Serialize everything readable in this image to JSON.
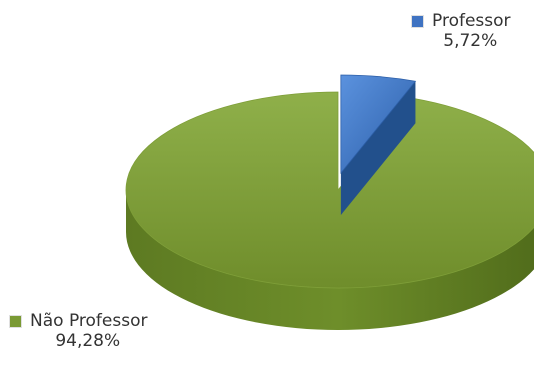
{
  "chart_data": {
    "type": "pie",
    "title": "",
    "series": [
      {
        "name": "",
        "slices": [
          {
            "label": "Professor",
            "value": 5.72,
            "display": "5,72%",
            "color": "#3f73c2",
            "exploded": true
          },
          {
            "label": "Não Professor",
            "value": 94.28,
            "display": "94,28%",
            "color": "#7a9a34",
            "exploded": false
          }
        ]
      }
    ],
    "legend_placement": "callouts"
  },
  "labels": {
    "professor_name": "Professor",
    "professor_value": "5,72%",
    "nao_professor_name": "Não Professor",
    "nao_professor_value": "94,28%"
  },
  "colors": {
    "professor": "#3f73c2",
    "nao_professor": "#7a9a34"
  }
}
